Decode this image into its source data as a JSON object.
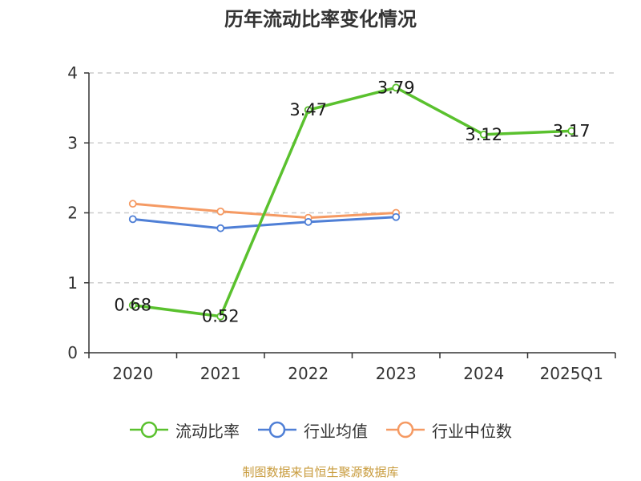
{
  "chart_data": {
    "type": "line",
    "title": "历年流动比率变化情况",
    "categories": [
      "2020",
      "2021",
      "2022",
      "2023",
      "2024",
      "2025Q1"
    ],
    "ylim": [
      0,
      4
    ],
    "yticks": [
      "0",
      "1",
      "2",
      "3",
      "4"
    ],
    "grid": true,
    "legend_position": "bottom",
    "series": [
      {
        "name": "流动比率",
        "color": "#5ac12e",
        "values": [
          0.68,
          0.52,
          3.47,
          3.79,
          3.12,
          3.17
        ],
        "labels": [
          "0.68",
          "0.52",
          "3.47",
          "3.79",
          "3.12",
          "3.17"
        ]
      },
      {
        "name": "行业均值",
        "color": "#4f7fd6",
        "values": [
          1.91,
          1.78,
          1.87,
          1.94,
          null,
          null
        ]
      },
      {
        "name": "行业中位数",
        "color": "#f59a63",
        "values": [
          2.13,
          2.02,
          1.93,
          2.0,
          null,
          null
        ]
      }
    ],
    "source": "制图数据来自恒生聚源数据库"
  }
}
